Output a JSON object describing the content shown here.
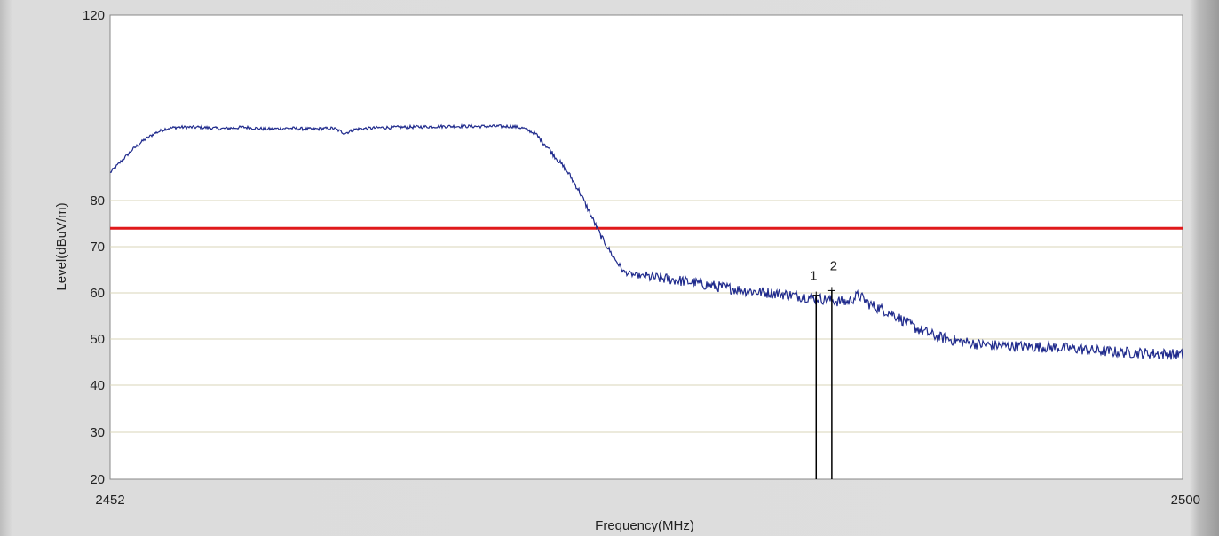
{
  "chart_data": {
    "type": "line",
    "xlabel": "Frequency(MHz)",
    "ylabel": "Level(dBuV/m)",
    "xlim": [
      2452,
      2500
    ],
    "ylim": [
      20,
      120
    ],
    "x_ticks": [
      "2452",
      "2500"
    ],
    "y_ticks": [
      "20",
      "30",
      "40",
      "50",
      "60",
      "70",
      "80",
      "120"
    ],
    "grid": true,
    "colors": {
      "trace": "#1f2a8c",
      "limit": "#e0191b",
      "grid": "#d9d6b8",
      "marker": "#000000"
    },
    "series": [
      {
        "role": "trace",
        "x": [
          2452,
          2452.5,
          2453,
          2453.5,
          2454,
          2454.5,
          2455,
          2456,
          2457,
          2458,
          2459,
          2460,
          2461,
          2462,
          2462.5,
          2463,
          2464,
          2465,
          2466,
          2467,
          2468,
          2469,
          2470,
          2470.5,
          2471,
          2471.5,
          2472,
          2472.5,
          2473,
          2473.5,
          2474,
          2474.5,
          2475,
          2475.5,
          2476,
          2476.5,
          2477,
          2478,
          2479,
          2480,
          2481,
          2482,
          2483,
          2484,
          2484.5,
          2485,
          2485.5,
          2486,
          2486.5,
          2487,
          2487.5,
          2488,
          2489,
          2490,
          2491,
          2492,
          2493,
          2494,
          2495,
          2496,
          2497,
          2498,
          2499,
          2500
        ],
        "y": [
          86,
          88.5,
          91,
          93,
          94.5,
          95.5,
          95.8,
          95.8,
          95.5,
          95.8,
          95.4,
          95.6,
          95.4,
          95.6,
          94.5,
          95.4,
          95.7,
          95.8,
          95.9,
          96,
          96,
          96,
          96,
          95.6,
          94.5,
          92,
          89,
          86,
          82,
          77,
          72,
          68,
          64.5,
          63.8,
          63.5,
          63.2,
          63,
          62.3,
          61.5,
          60.8,
          60.2,
          59.8,
          59.2,
          58.6,
          58.2,
          58,
          59.5,
          57.5,
          56.5,
          55.5,
          54,
          52.5,
          50.5,
          49.5,
          48.8,
          48.5,
          48.4,
          48.2,
          48,
          47.5,
          47.2,
          47,
          46.8,
          46.6
        ]
      },
      {
        "role": "limit",
        "x": [
          2452,
          2500
        ],
        "y": [
          74,
          74
        ]
      }
    ],
    "markers": [
      {
        "label": "1",
        "x": 2483.6,
        "y": 59.5
      },
      {
        "label": "2",
        "x": 2484.3,
        "y": 60.5
      }
    ]
  }
}
